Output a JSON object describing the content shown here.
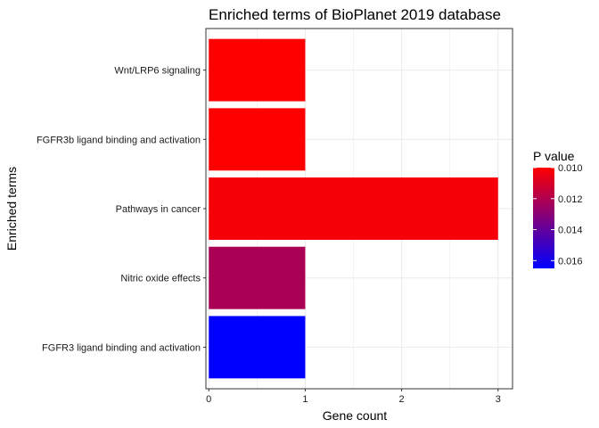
{
  "chart_data": {
    "type": "bar",
    "orientation": "horizontal",
    "title": "Enriched terms of BioPlanet 2019 database",
    "xlabel": "Gene count",
    "ylabel": "Enriched terms",
    "categories": [
      "Wnt/LRP6 signaling",
      "FGFR3b ligand binding and activation",
      "Pathways in cancer",
      "Nitric oxide effects",
      "FGFR3 ligand binding and activation"
    ],
    "values": [
      1,
      1,
      3,
      1,
      1
    ],
    "p_values": [
      0.01,
      0.01,
      0.0102,
      0.0122,
      0.0165
    ],
    "xlim": [
      -0.03,
      3.15
    ],
    "xticks": [
      "0",
      "1",
      "2",
      "3"
    ],
    "grid": true,
    "legend": {
      "title": "P value",
      "position": "right",
      "range": [
        0.01,
        0.0165
      ],
      "ticks": [
        "0.010",
        "0.012",
        "0.014",
        "0.016"
      ],
      "tick_values": [
        0.01,
        0.012,
        0.014,
        0.016
      ],
      "low_color": "#FF0000",
      "high_color": "#0000FF"
    }
  }
}
